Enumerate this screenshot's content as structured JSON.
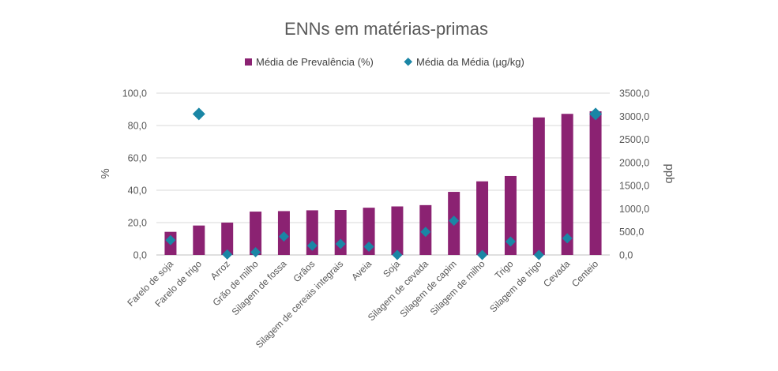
{
  "chart_data": {
    "type": "bar",
    "title": "ENNs em matérias-primas",
    "ylabel": "%",
    "y2label": "ppb",
    "ylim": [
      0,
      100
    ],
    "y2lim": [
      0,
      3500
    ],
    "yticks": [
      "0,0",
      "20,0",
      "40,0",
      "60,0",
      "80,0",
      "100,0"
    ],
    "y2ticks": [
      "0,0",
      "500,0",
      "1000,0",
      "1500,0",
      "2000,0",
      "2500,0",
      "3000,0",
      "3500,0"
    ],
    "categories": [
      "Farelo de soja",
      "Farelo de trigo",
      "Arroz",
      "Grão de milho",
      "Silagem de fossa",
      "Grãos",
      "Silagem de cereais integrais",
      "Aveia",
      "Soja",
      "Silagem de cevada",
      "Silagem de capim",
      "Silagem de milho",
      "Trigo",
      "Silagem de trigo",
      "Cevada",
      "Centeio"
    ],
    "series": [
      {
        "name": "Média de Prevalência (%)",
        "kind": "bar",
        "axis": "left",
        "color": "#8B2272",
        "values": [
          14.3,
          18.2,
          20.0,
          26.8,
          27.1,
          27.6,
          27.8,
          29.2,
          30.0,
          30.8,
          39.0,
          45.5,
          48.8,
          85.0,
          87.2,
          88.8
        ]
      },
      {
        "name": "Média da Média (µg/kg)",
        "kind": "marker",
        "axis": "right",
        "color": "#1A86A5",
        "values": [
          320,
          3050,
          10,
          60,
          400,
          200,
          240,
          180,
          0,
          500,
          740,
          0,
          290,
          0,
          360,
          3050
        ]
      }
    ],
    "legend_position": "top",
    "grid": "horizontal"
  }
}
